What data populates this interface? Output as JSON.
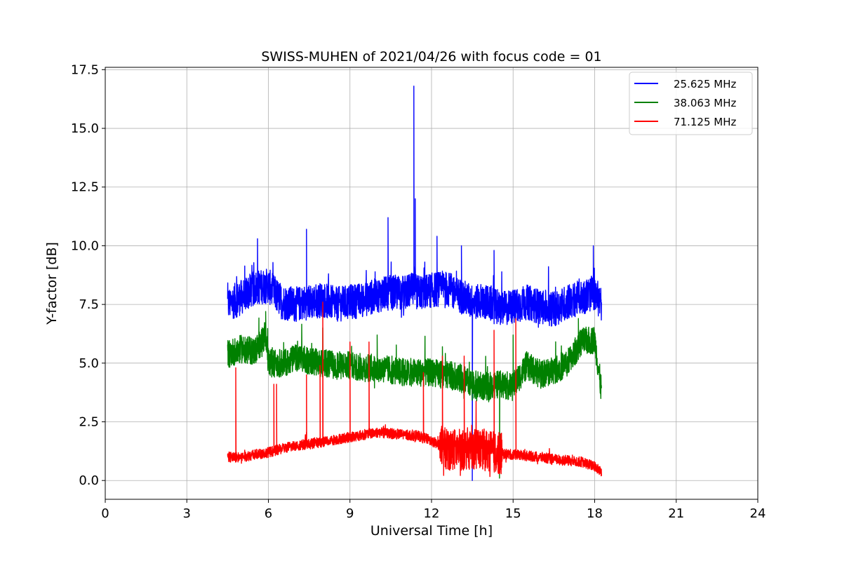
{
  "chart_data": {
    "type": "line",
    "title": "SWISS-MUHEN of 2021/04/26 with focus code = 01",
    "xlabel": "Universal Time [h]",
    "ylabel": "Y-factor [dB]",
    "xlim": [
      0,
      24
    ],
    "ylim": [
      -0.8,
      17.6
    ],
    "xticks": [
      0,
      3,
      6,
      9,
      12,
      15,
      18,
      21,
      24
    ],
    "xtick_labels": [
      "0",
      "3",
      "6",
      "9",
      "12",
      "15",
      "18",
      "21",
      "24"
    ],
    "yticks": [
      0.0,
      2.5,
      5.0,
      7.5,
      10.0,
      12.5,
      15.0,
      17.5
    ],
    "ytick_labels": [
      "0.0",
      "2.5",
      "5.0",
      "7.5",
      "10.0",
      "12.5",
      "15.0",
      "17.5"
    ],
    "grid": true,
    "legend_position": "top-right",
    "series": [
      {
        "name": "25.625 MHz",
        "color": "#0000ff",
        "x": [
          4.5,
          5.0,
          5.5,
          6.0,
          6.5,
          7.0,
          7.5,
          8.0,
          8.5,
          9.0,
          9.5,
          10.0,
          10.5,
          11.0,
          11.3,
          11.5,
          12.0,
          12.5,
          13.0,
          13.5,
          14.0,
          14.5,
          15.0,
          15.5,
          16.0,
          16.5,
          17.0,
          17.5,
          18.0,
          18.25
        ],
        "y": [
          7.5,
          7.8,
          8.2,
          8.3,
          7.6,
          7.5,
          7.6,
          7.7,
          7.5,
          7.6,
          7.7,
          7.9,
          8.0,
          8.0,
          8.1,
          8.0,
          8.1,
          8.2,
          7.9,
          7.6,
          7.6,
          7.3,
          7.4,
          7.6,
          7.4,
          7.3,
          7.6,
          7.8,
          8.0,
          7.5
        ],
        "spikes": [
          [
            5.6,
            10.3
          ],
          [
            7.4,
            10.7
          ],
          [
            10.4,
            11.2
          ],
          [
            11.35,
            16.8
          ],
          [
            11.4,
            12.0
          ],
          [
            12.2,
            10.4
          ],
          [
            13.1,
            10.0
          ],
          [
            13.5,
            0.0
          ],
          [
            14.3,
            9.8
          ],
          [
            17.95,
            10.0
          ]
        ]
      },
      {
        "name": "38.063 MHz",
        "color": "#008000",
        "x": [
          4.5,
          5.0,
          5.5,
          5.9,
          6.0,
          6.5,
          7.0,
          7.5,
          8.0,
          8.5,
          9.0,
          9.5,
          10.0,
          10.5,
          11.0,
          11.5,
          12.0,
          12.5,
          13.0,
          13.5,
          14.0,
          14.5,
          15.0,
          15.5,
          16.0,
          16.5,
          17.0,
          17.5,
          18.0,
          18.25
        ],
        "y": [
          5.4,
          5.6,
          5.5,
          6.2,
          5.0,
          5.0,
          5.2,
          5.1,
          5.0,
          4.9,
          4.9,
          4.8,
          4.8,
          4.7,
          4.6,
          4.6,
          4.6,
          4.5,
          4.4,
          4.1,
          4.0,
          4.1,
          4.0,
          4.9,
          4.5,
          4.7,
          5.0,
          5.9,
          6.0,
          3.8
        ],
        "spikes": [
          [
            5.9,
            7.2
          ],
          [
            8.0,
            6.5
          ],
          [
            10.0,
            6.2
          ],
          [
            12.4,
            5.7
          ],
          [
            14.5,
            0.1
          ],
          [
            15.0,
            6.2
          ],
          [
            17.4,
            6.9
          ]
        ]
      },
      {
        "name": "71.125 MHz",
        "color": "#ff0000",
        "x": [
          4.5,
          5.0,
          5.5,
          6.0,
          6.5,
          7.0,
          7.5,
          8.0,
          8.5,
          9.0,
          9.5,
          10.0,
          10.5,
          11.0,
          11.5,
          12.0,
          12.5,
          13.0,
          13.5,
          14.0,
          14.5,
          15.0,
          15.5,
          16.0,
          16.5,
          17.0,
          17.5,
          18.0,
          18.25
        ],
        "y": [
          1.0,
          1.0,
          1.1,
          1.2,
          1.35,
          1.5,
          1.55,
          1.65,
          1.75,
          1.85,
          1.95,
          2.05,
          2.0,
          1.95,
          1.9,
          1.7,
          1.35,
          1.3,
          1.4,
          1.3,
          1.15,
          1.1,
          1.05,
          1.0,
          0.9,
          0.85,
          0.8,
          0.6,
          0.35
        ],
        "spikes": [
          [
            4.8,
            4.8
          ],
          [
            6.2,
            4.1
          ],
          [
            6.3,
            4.1
          ],
          [
            7.4,
            4.5
          ],
          [
            7.9,
            4.9
          ],
          [
            8.0,
            7.6
          ],
          [
            9.0,
            5.9
          ],
          [
            9.7,
            5.9
          ],
          [
            11.7,
            4.6
          ],
          [
            12.4,
            5.3
          ],
          [
            13.2,
            5.3
          ],
          [
            14.3,
            6.4
          ],
          [
            15.1,
            6.9
          ]
        ]
      }
    ]
  }
}
